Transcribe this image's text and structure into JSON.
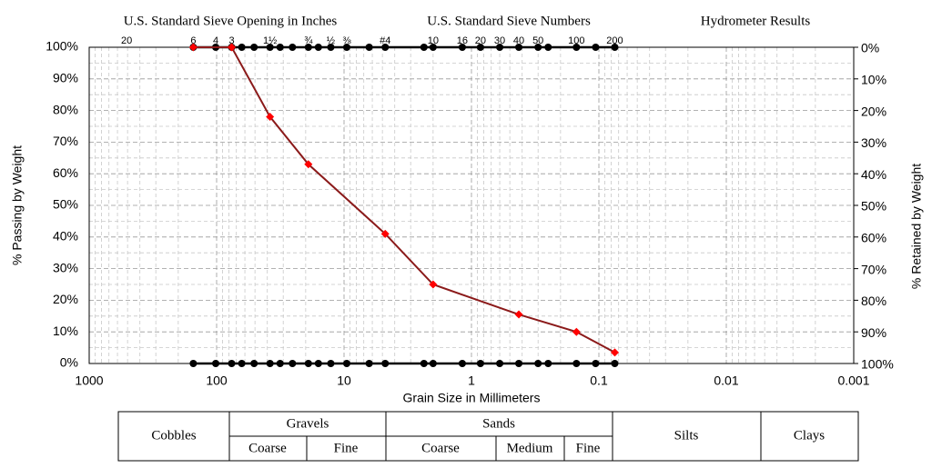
{
  "chart_data": {
    "type": "line",
    "headers": [
      "U.S. Standard Sieve Opening in Inches",
      "U.S. Standard Sieve Numbers",
      "Hydrometer Results"
    ],
    "xlabel": "Grain Size in Millimeters",
    "ylabel": "% Passing by Weight",
    "y2label": "% Retained by Weight",
    "xlog": true,
    "grid": true,
    "x": [
      152.4,
      76.2,
      38.1,
      19.05,
      4.75,
      2.0,
      0.425,
      0.15,
      0.075
    ],
    "series": [
      {
        "color": "#8b1a1a",
        "marker_color": "#ff0000",
        "values": [
          100,
          100,
          78,
          63,
          41,
          25,
          15.5,
          10,
          3.5
        ]
      }
    ],
    "xlim": [
      1000,
      0.001
    ],
    "xticks": [
      1000,
      100,
      10,
      1,
      0.1,
      0.01,
      0.001
    ],
    "ylim": [
      0,
      100
    ],
    "yticks": [
      {
        "value": 0,
        "label": "0%"
      },
      {
        "value": 10,
        "label": "10%"
      },
      {
        "value": 20,
        "label": "20%"
      },
      {
        "value": 30,
        "label": "30%"
      },
      {
        "value": 40,
        "label": "40%"
      },
      {
        "value": 50,
        "label": "50%"
      },
      {
        "value": 60,
        "label": "60%"
      },
      {
        "value": 70,
        "label": "70%"
      },
      {
        "value": 80,
        "label": "80%"
      },
      {
        "value": 90,
        "label": "90%"
      },
      {
        "value": 100,
        "label": "100%"
      }
    ],
    "y2lim": [
      100,
      0
    ],
    "y2ticks": [
      {
        "value": 100,
        "label": "100%"
      },
      {
        "value": 90,
        "label": "90%"
      },
      {
        "value": 80,
        "label": "80%"
      },
      {
        "value": 70,
        "label": "70%"
      },
      {
        "value": 60,
        "label": "60%"
      },
      {
        "value": 50,
        "label": "50%"
      },
      {
        "value": 40,
        "label": "40%"
      },
      {
        "value": 30,
        "label": "30%"
      },
      {
        "value": 20,
        "label": "20%"
      },
      {
        "value": 10,
        "label": "10%"
      },
      {
        "value": 0,
        "label": "0%"
      }
    ],
    "sieve_ticks": [
      {
        "value": 508,
        "label": "20"
      },
      {
        "value": 152.4,
        "label": "6"
      },
      {
        "value": 101.6,
        "label": "4"
      },
      {
        "value": 76.2,
        "label": "3"
      },
      {
        "value": 38.1,
        "label": "1½"
      },
      {
        "value": 19.05,
        "label": "¾"
      },
      {
        "value": 12.7,
        "label": "½"
      },
      {
        "value": 9.525,
        "label": "⅜"
      },
      {
        "value": 4.75,
        "label": "#4"
      },
      {
        "value": 2.0,
        "label": "10"
      },
      {
        "value": 1.18,
        "label": "16"
      },
      {
        "value": 0.85,
        "label": "20"
      },
      {
        "value": 0.6,
        "label": "30"
      },
      {
        "value": 0.425,
        "label": "40"
      },
      {
        "value": 0.3,
        "label": "50"
      },
      {
        "value": 0.15,
        "label": "100"
      },
      {
        "value": 0.075,
        "label": "200"
      }
    ],
    "sieve_sizes": [
      152.4,
      101.6,
      76.2,
      63.5,
      50.8,
      38.1,
      31.75,
      25.4,
      19.05,
      15.9,
      12.7,
      9.525,
      6.35,
      4.75,
      2.36,
      2.0,
      1.18,
      0.85,
      0.6,
      0.425,
      0.3,
      0.25,
      0.15,
      0.106,
      0.075
    ]
  },
  "classification": {
    "cobbles": "Cobbles",
    "gravels": {
      "name": "Gravels",
      "parts": [
        "Coarse",
        "Fine"
      ]
    },
    "sands": {
      "name": "Sands",
      "parts": [
        "Coarse",
        "Medium",
        "Fine"
      ]
    },
    "silts": "Silts",
    "clays": "Clays"
  }
}
